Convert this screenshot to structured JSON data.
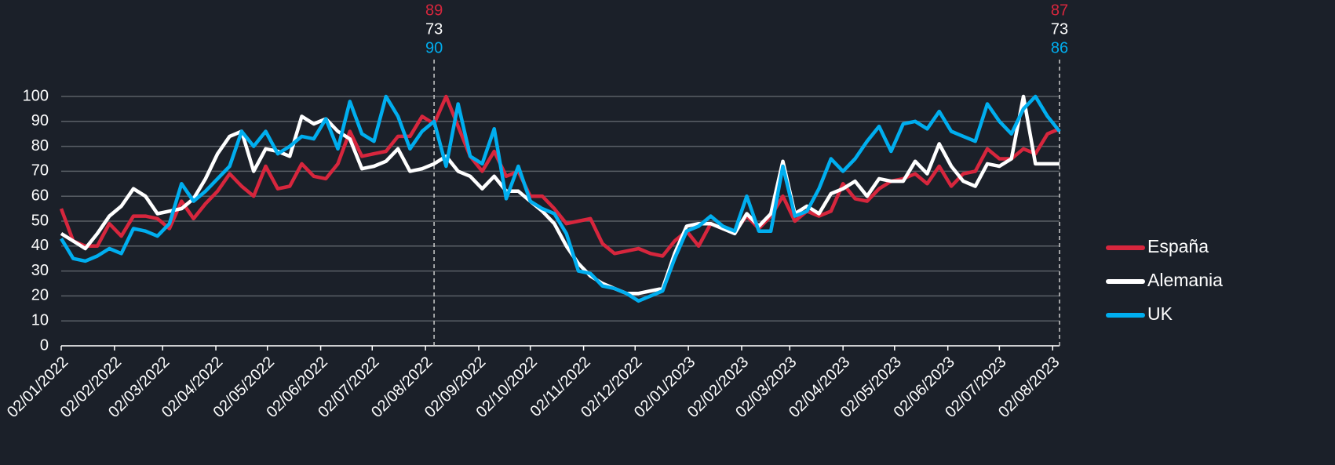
{
  "chart_data": {
    "type": "line",
    "x": [
      "2022-01-02",
      "2022-01-09",
      "2022-01-16",
      "2022-01-23",
      "2022-01-30",
      "2022-02-06",
      "2022-02-13",
      "2022-02-20",
      "2022-02-27",
      "2022-03-06",
      "2022-03-13",
      "2022-03-20",
      "2022-03-27",
      "2022-04-03",
      "2022-04-10",
      "2022-04-17",
      "2022-04-24",
      "2022-05-01",
      "2022-05-08",
      "2022-05-15",
      "2022-05-22",
      "2022-05-29",
      "2022-06-05",
      "2022-06-12",
      "2022-06-19",
      "2022-06-26",
      "2022-07-03",
      "2022-07-10",
      "2022-07-17",
      "2022-07-24",
      "2022-07-31",
      "2022-08-07",
      "2022-08-14",
      "2022-08-21",
      "2022-08-28",
      "2022-09-04",
      "2022-09-11",
      "2022-09-18",
      "2022-09-25",
      "2022-10-02",
      "2022-10-09",
      "2022-10-16",
      "2022-10-23",
      "2022-10-30",
      "2022-11-06",
      "2022-11-13",
      "2022-11-20",
      "2022-11-27",
      "2022-12-04",
      "2022-12-11",
      "2022-12-18",
      "2022-12-25",
      "2023-01-01",
      "2023-01-08",
      "2023-01-15",
      "2023-01-22",
      "2023-01-29",
      "2023-02-05",
      "2023-02-12",
      "2023-02-19",
      "2023-02-26",
      "2023-03-05",
      "2023-03-12",
      "2023-03-19",
      "2023-03-26",
      "2023-04-02",
      "2023-04-09",
      "2023-04-16",
      "2023-04-23",
      "2023-04-30",
      "2023-05-07",
      "2023-05-14",
      "2023-05-21",
      "2023-05-28",
      "2023-06-04",
      "2023-06-11",
      "2023-06-18",
      "2023-06-25",
      "2023-07-02",
      "2023-07-09",
      "2023-07-16",
      "2023-07-23",
      "2023-07-30",
      "2023-08-06"
    ],
    "series": [
      {
        "name": "España",
        "color": "#d7263d",
        "values": [
          55,
          42,
          40,
          40,
          49,
          44,
          52,
          52,
          51,
          47,
          58,
          51,
          57,
          62,
          69,
          64,
          60,
          72,
          63,
          64,
          73,
          68,
          67,
          73,
          86,
          76,
          77,
          78,
          84,
          84,
          92,
          89,
          100,
          88,
          76,
          70,
          78,
          68,
          70,
          60,
          60,
          55,
          49,
          50,
          51,
          41,
          37,
          38,
          39,
          37,
          36,
          42,
          46,
          40,
          49,
          47,
          46,
          52,
          47,
          52,
          60,
          50,
          54,
          52,
          54,
          65,
          59,
          58,
          63,
          66,
          67,
          69,
          65,
          72,
          64,
          69,
          70,
          79,
          75,
          75,
          79,
          77,
          85,
          87
        ]
      },
      {
        "name": "Alemania",
        "color": "#ffffff",
        "values": [
          45,
          42,
          39,
          45,
          52,
          56,
          63,
          60,
          53,
          54,
          55,
          59,
          67,
          77,
          84,
          86,
          70,
          79,
          78,
          76,
          92,
          89,
          91,
          86,
          83,
          71,
          72,
          74,
          79,
          70,
          71,
          73,
          76,
          70,
          68,
          63,
          68,
          62,
          62,
          58,
          54,
          49,
          40,
          33,
          28,
          25,
          23,
          21,
          21,
          22,
          23,
          37,
          48,
          49,
          49,
          47,
          45,
          53,
          48,
          53,
          74,
          53,
          56,
          53,
          61,
          63,
          66,
          60,
          67,
          66,
          66,
          74,
          69,
          81,
          72,
          66,
          64,
          73,
          72,
          75,
          100,
          73,
          73,
          73
        ]
      },
      {
        "name": "UK",
        "color": "#00aeef",
        "values": [
          43,
          35,
          34,
          36,
          39,
          37,
          47,
          46,
          44,
          49,
          65,
          58,
          62,
          67,
          72,
          86,
          80,
          86,
          77,
          80,
          84,
          83,
          91,
          79,
          98,
          85,
          82,
          100,
          92,
          79,
          86,
          90,
          72,
          97,
          76,
          73,
          87,
          59,
          72,
          58,
          55,
          53,
          45,
          30,
          29,
          24,
          23,
          21,
          18,
          20,
          22,
          35,
          46,
          48,
          52,
          48,
          46,
          60,
          46,
          46,
          72,
          52,
          54,
          63,
          75,
          70,
          75,
          82,
          88,
          78,
          89,
          90,
          87,
          94,
          86,
          84,
          82,
          97,
          90,
          85,
          95,
          100,
          92,
          86
        ]
      }
    ],
    "xlim": [
      "2022-01-02",
      "2023-08-06"
    ],
    "xticks": [
      {
        "value": "2022-01-02",
        "label": "02/01/2022"
      },
      {
        "value": "2022-02-02",
        "label": "02/02/2022"
      },
      {
        "value": "2022-03-02",
        "label": "02/03/2022"
      },
      {
        "value": "2022-04-02",
        "label": "02/04/2022"
      },
      {
        "value": "2022-05-02",
        "label": "02/05/2022"
      },
      {
        "value": "2022-06-02",
        "label": "02/06/2022"
      },
      {
        "value": "2022-07-02",
        "label": "02/07/2022"
      },
      {
        "value": "2022-08-02",
        "label": "02/08/2022"
      },
      {
        "value": "2022-09-02",
        "label": "02/09/2022"
      },
      {
        "value": "2022-10-02",
        "label": "02/10/2022"
      },
      {
        "value": "2022-11-02",
        "label": "02/11/2022"
      },
      {
        "value": "2022-12-02",
        "label": "02/12/2022"
      },
      {
        "value": "2023-01-02",
        "label": "02/01/2023"
      },
      {
        "value": "2023-02-02",
        "label": "02/02/2023"
      },
      {
        "value": "2023-03-02",
        "label": "02/03/2023"
      },
      {
        "value": "2023-04-02",
        "label": "02/04/2023"
      },
      {
        "value": "2023-05-02",
        "label": "02/05/2023"
      },
      {
        "value": "2023-06-02",
        "label": "02/06/2023"
      },
      {
        "value": "2023-07-02",
        "label": "02/07/2023"
      },
      {
        "value": "2023-08-02",
        "label": "02/08/2023"
      }
    ],
    "ylim": [
      0,
      100
    ],
    "yticks": [
      0,
      10,
      20,
      30,
      40,
      50,
      60,
      70,
      80,
      90,
      100
    ],
    "grid": true,
    "legend": "right",
    "highlight_x": [
      "2022-08-07",
      "2023-08-06"
    ]
  }
}
